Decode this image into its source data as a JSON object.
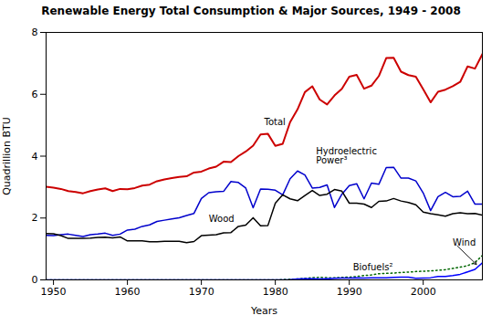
{
  "chart_data": {
    "type": "line",
    "title": "Renewable Energy Total Consumption & Major Sources, 1949 - 2008",
    "xlabel": "Years",
    "ylabel": "Quadrillion BTU",
    "x": [
      1949,
      1950,
      1951,
      1952,
      1953,
      1954,
      1955,
      1956,
      1957,
      1958,
      1959,
      1960,
      1961,
      1962,
      1963,
      1964,
      1965,
      1966,
      1967,
      1968,
      1969,
      1970,
      1971,
      1972,
      1973,
      1974,
      1975,
      1976,
      1977,
      1978,
      1979,
      1980,
      1981,
      1982,
      1983,
      1984,
      1985,
      1986,
      1987,
      1988,
      1989,
      1990,
      1991,
      1992,
      1993,
      1994,
      1995,
      1996,
      1997,
      1998,
      1999,
      2000,
      2001,
      2002,
      2003,
      2004,
      2005,
      2006,
      2007,
      2008
    ],
    "xlim": [
      1949,
      2008
    ],
    "xticks": [
      1950,
      1960,
      1970,
      1980,
      1990,
      2000
    ],
    "ylim": [
      0,
      8
    ],
    "yticks": [
      0,
      2,
      4,
      6,
      8
    ],
    "grid": false,
    "series": [
      {
        "name": "Total",
        "color": "#cc0000",
        "values": [
          3.01,
          2.98,
          2.94,
          2.87,
          2.84,
          2.8,
          2.87,
          2.92,
          2.96,
          2.87,
          2.94,
          2.93,
          2.97,
          3.05,
          3.08,
          3.19,
          3.25,
          3.29,
          3.33,
          3.35,
          3.47,
          3.5,
          3.6,
          3.66,
          3.82,
          3.81,
          4.0,
          4.15,
          4.34,
          4.7,
          4.72,
          4.33,
          4.4,
          5.1,
          5.51,
          6.07,
          6.26,
          5.83,
          5.67,
          5.96,
          6.18,
          6.57,
          6.63,
          6.18,
          6.28,
          6.59,
          7.17,
          7.18,
          6.73,
          6.62,
          6.57,
          6.16,
          5.74,
          6.08,
          6.15,
          6.26,
          6.4,
          6.9,
          6.83,
          7.3
        ]
      },
      {
        "name": "Hydroelectric\nPower³",
        "color": "#0000cc",
        "values": [
          1.44,
          1.43,
          1.46,
          1.48,
          1.44,
          1.4,
          1.46,
          1.48,
          1.51,
          1.44,
          1.48,
          1.61,
          1.64,
          1.73,
          1.78,
          1.89,
          1.93,
          1.97,
          2.01,
          2.08,
          2.15,
          2.63,
          2.82,
          2.85,
          2.86,
          3.18,
          3.15,
          2.97,
          2.33,
          2.94,
          2.93,
          2.9,
          2.75,
          3.27,
          3.52,
          3.39,
          2.97,
          2.99,
          3.07,
          2.34,
          2.77,
          3.05,
          3.11,
          2.62,
          3.13,
          3.09,
          3.63,
          3.64,
          3.29,
          3.29,
          3.2,
          2.81,
          2.24,
          2.69,
          2.83,
          2.69,
          2.7,
          2.87,
          2.45,
          2.45
        ]
      },
      {
        "name": "Wood",
        "color": "#000000",
        "values": [
          1.5,
          1.49,
          1.43,
          1.34,
          1.34,
          1.34,
          1.35,
          1.37,
          1.38,
          1.36,
          1.39,
          1.26,
          1.26,
          1.26,
          1.23,
          1.23,
          1.25,
          1.25,
          1.25,
          1.2,
          1.24,
          1.43,
          1.45,
          1.46,
          1.52,
          1.53,
          1.73,
          1.77,
          2.01,
          1.75,
          1.76,
          2.48,
          2.75,
          2.62,
          2.56,
          2.73,
          2.89,
          2.73,
          2.77,
          2.92,
          2.87,
          2.48,
          2.48,
          2.45,
          2.34,
          2.54,
          2.55,
          2.63,
          2.55,
          2.5,
          2.43,
          2.19,
          2.14,
          2.1,
          2.06,
          2.14,
          2.17,
          2.14,
          2.15,
          2.09
        ]
      },
      {
        "name": "Biofuels²",
        "color": "#006600",
        "line_style": "dotted",
        "values": [
          0.0,
          0.0,
          0.0,
          0.0,
          0.0,
          0.0,
          0.0,
          0.0,
          0.0,
          0.0,
          0.0,
          0.0,
          0.0,
          0.0,
          0.0,
          0.0,
          0.0,
          0.0,
          0.0,
          0.0,
          0.0,
          0.0,
          0.0,
          0.0,
          0.0,
          0.0,
          0.0,
          0.0,
          0.0,
          0.0,
          0.0,
          0.0,
          0.01,
          0.02,
          0.03,
          0.05,
          0.07,
          0.08,
          0.07,
          0.07,
          0.08,
          0.09,
          0.11,
          0.14,
          0.16,
          0.2,
          0.21,
          0.22,
          0.24,
          0.25,
          0.27,
          0.28,
          0.29,
          0.31,
          0.33,
          0.37,
          0.41,
          0.46,
          0.56,
          0.79
        ]
      },
      {
        "name": "Wind",
        "color": "#0000ff",
        "values": [
          0.0,
          0.0,
          0.0,
          0.0,
          0.0,
          0.0,
          0.0,
          0.0,
          0.0,
          0.0,
          0.0,
          0.0,
          0.0,
          0.0,
          0.0,
          0.0,
          0.0,
          0.0,
          0.0,
          0.0,
          0.0,
          0.0,
          0.0,
          0.0,
          0.0,
          0.0,
          0.0,
          0.0,
          0.0,
          0.0,
          0.0,
          0.0,
          0.0,
          0.01,
          0.03,
          0.04,
          0.04,
          0.03,
          0.04,
          0.05,
          0.06,
          0.06,
          0.07,
          0.06,
          0.07,
          0.07,
          0.07,
          0.08,
          0.09,
          0.09,
          0.05,
          0.06,
          0.07,
          0.11,
          0.11,
          0.14,
          0.18,
          0.26,
          0.34,
          0.55
        ]
      }
    ],
    "annotations": [
      {
        "text": "Total",
        "x": 1978.5,
        "y": 5.0
      },
      {
        "text": "Hydroelectric\nPower³",
        "x": 1985.5,
        "y": 3.75
      },
      {
        "text": "Wood",
        "x": 1971.0,
        "y": 1.88
      },
      {
        "text": "Biofuels²",
        "x": 1990.5,
        "y": 0.3
      },
      {
        "text": "Wind",
        "x": 2004.0,
        "y": 1.1,
        "arrow_to": [
          2007.2,
          0.5
        ]
      }
    ]
  }
}
